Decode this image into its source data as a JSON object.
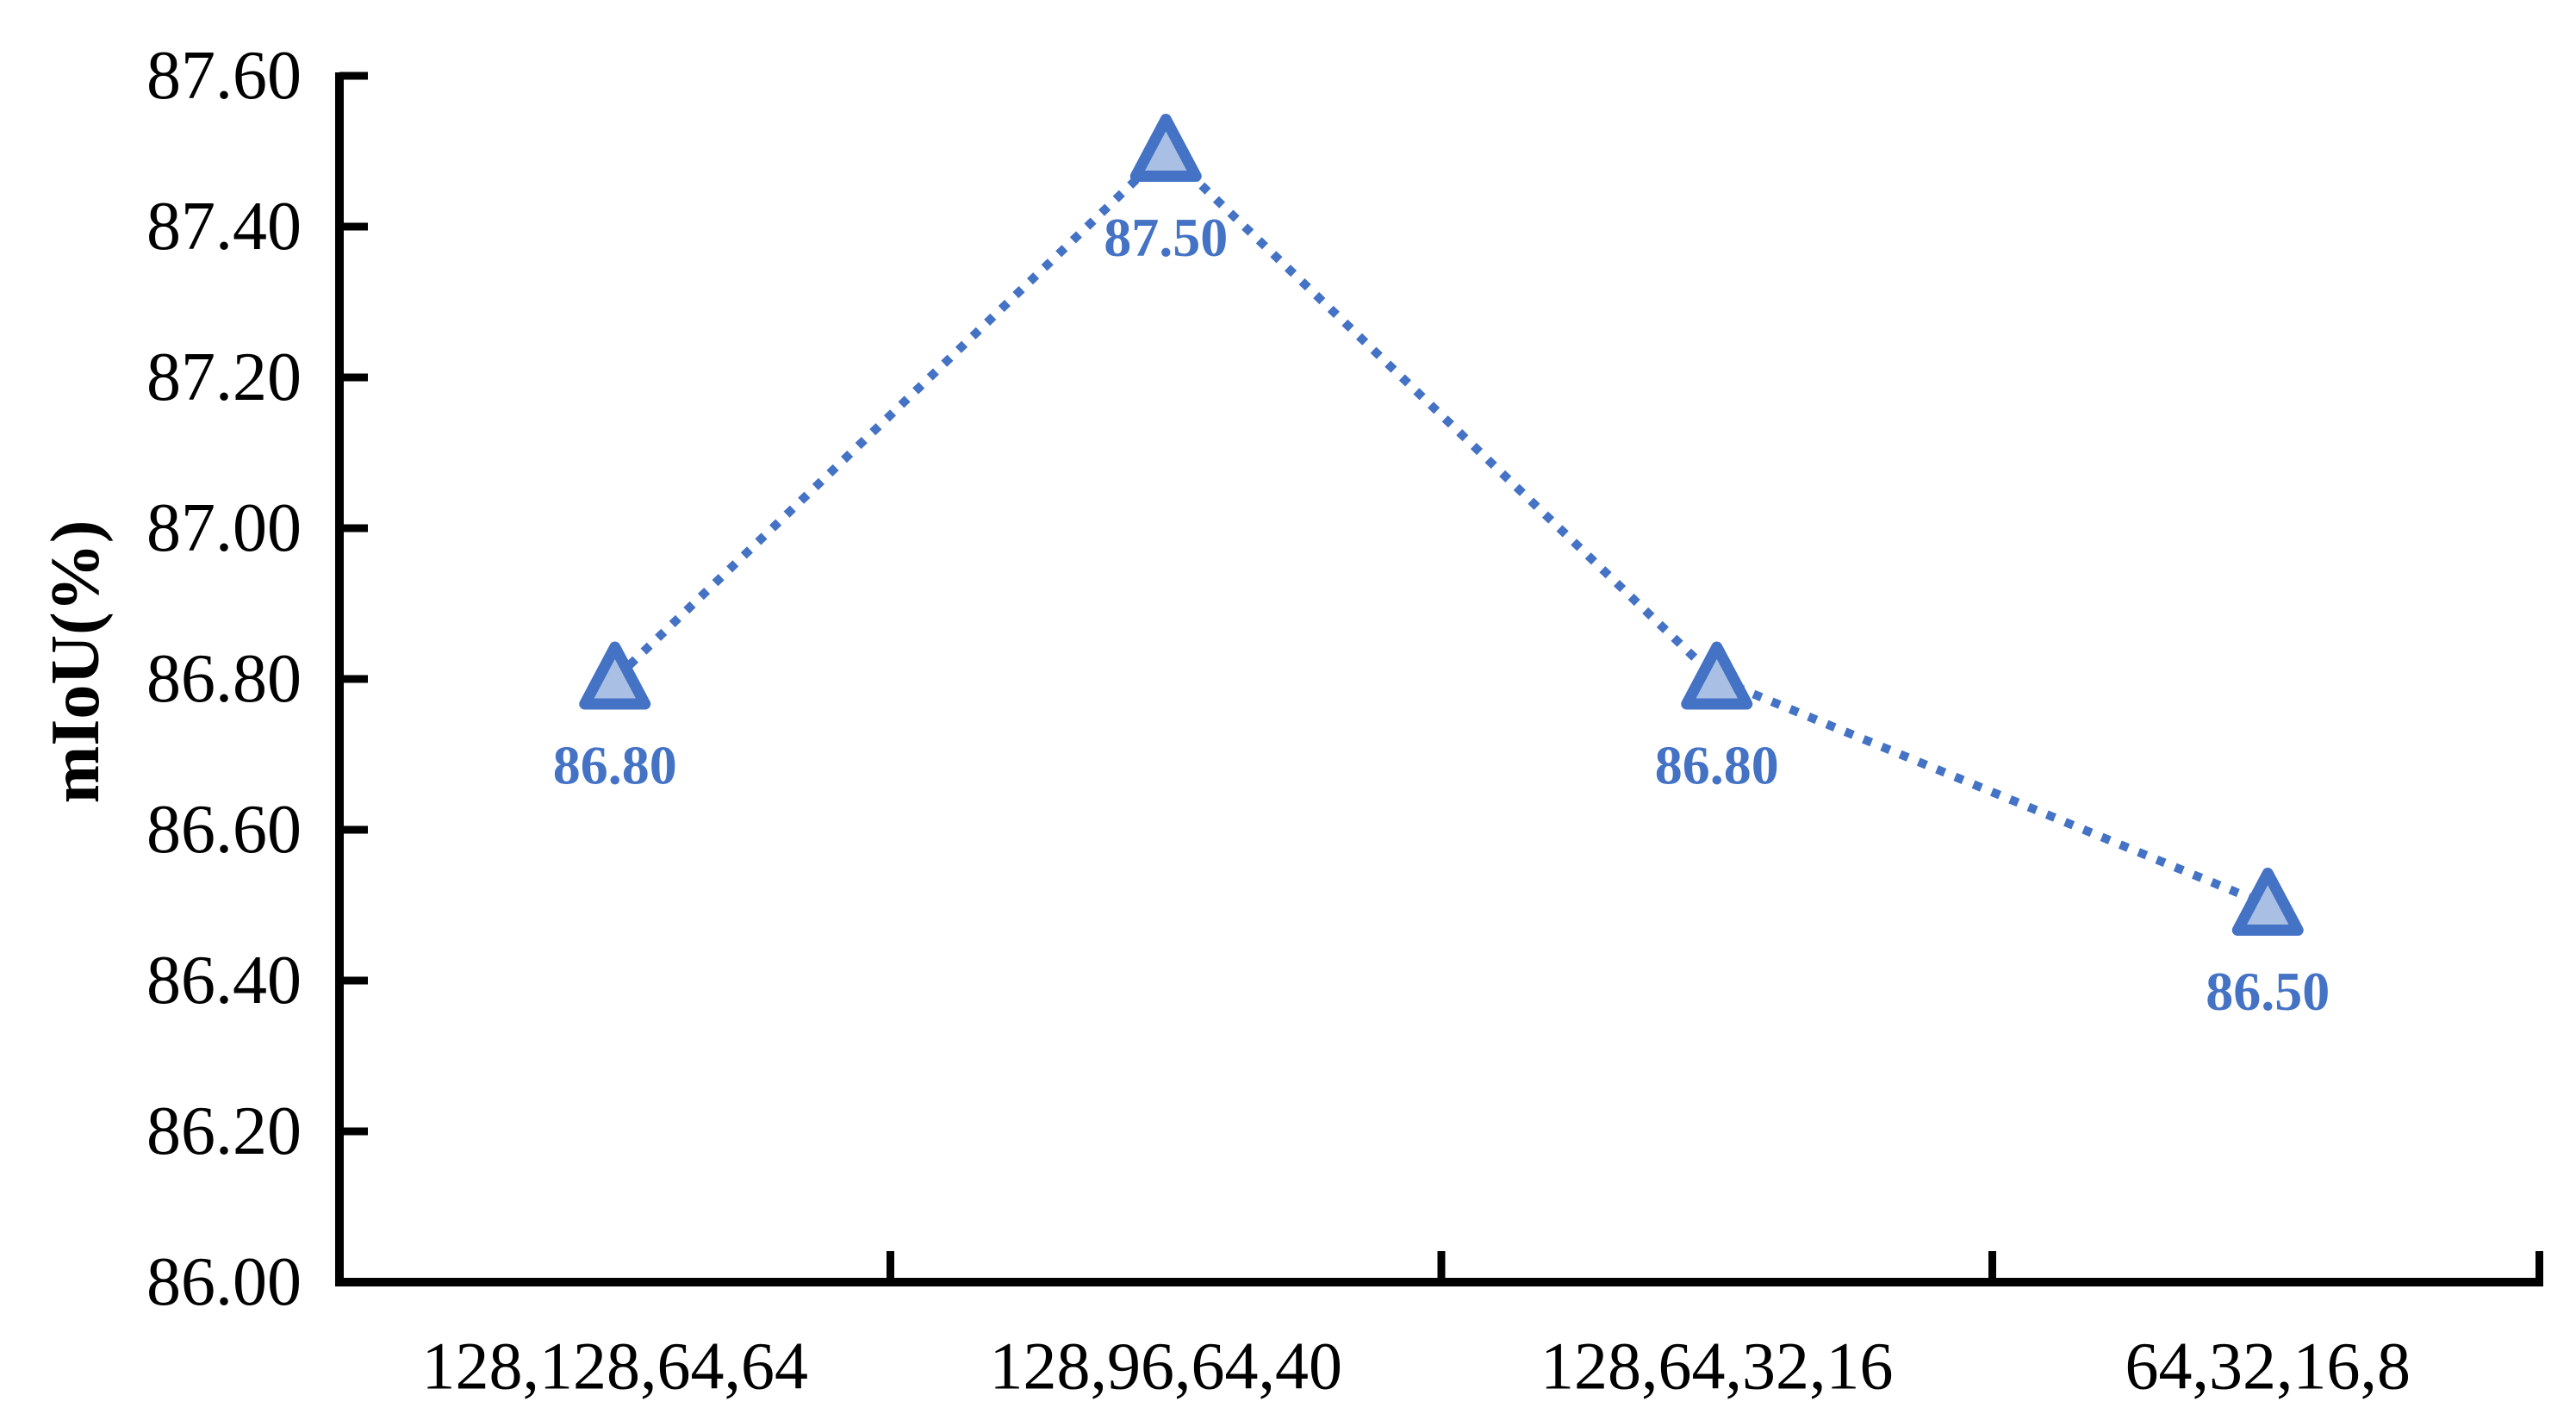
{
  "figure": {
    "background": "#ffffff"
  },
  "chart_data": {
    "type": "line",
    "title": "",
    "xlabel": "",
    "ylabel": "mIoU(%)",
    "categories": [
      "128,128,64,64",
      "128,96,64,40",
      "128,64,32,16",
      "64,32,16,8"
    ],
    "series": [
      {
        "name": "mIoU",
        "values": [
          86.8,
          87.5,
          86.8,
          86.5
        ],
        "point_labels": [
          "86.80",
          "87.50",
          "86.80",
          "86.50"
        ]
      }
    ],
    "ylim": [
      86.0,
      87.6
    ],
    "ytick_step": 0.2,
    "ytick_labels": [
      "86.00",
      "86.20",
      "86.40",
      "86.60",
      "86.80",
      "87.00",
      "87.20",
      "87.40",
      "87.60"
    ],
    "grid": false,
    "legend": "none",
    "line_style": "dotted",
    "marker": "triangle-up",
    "colors": {
      "line": "#4472C4",
      "marker_fill": "#A9BFE4",
      "marker_stroke": "#4472C4",
      "data_label": "#4472C4",
      "axis": "#000000",
      "tick_label": "#000000"
    }
  }
}
